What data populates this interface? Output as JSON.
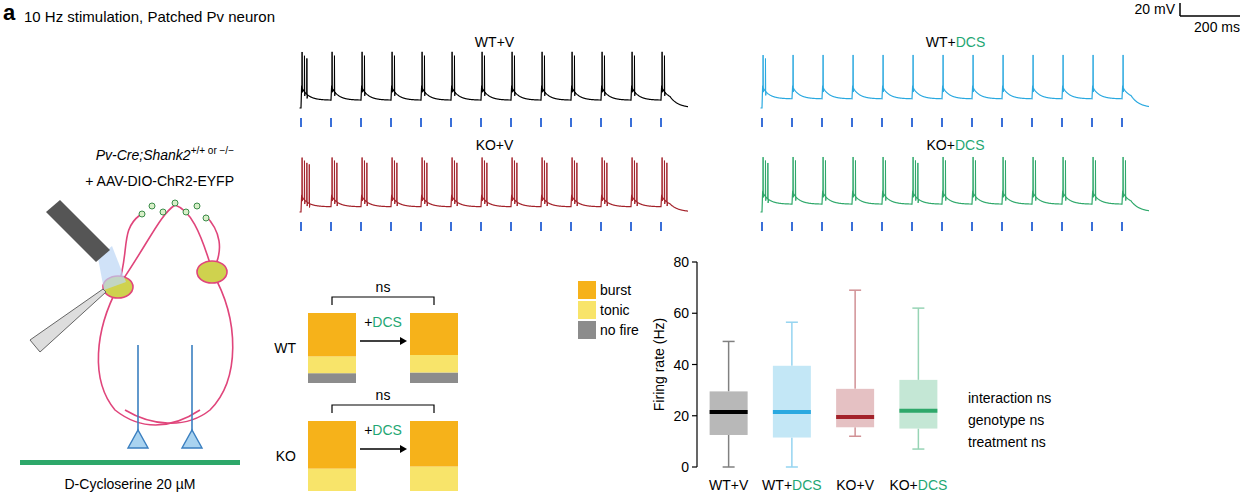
{
  "panel": "a",
  "title": "10 Hz stimulation, Patched Pv neuron",
  "highlight": {
    "text": "DCS",
    "color": "#1fa774"
  },
  "schematic": {
    "genotype": "Pv-Cre;Shank2",
    "genotype_sup": "+/+ or −/−",
    "virus": "+ AAV-DIO-ChR2-EYFP",
    "drug": "D-Cycloserine 20 µM"
  },
  "traces": {
    "stim_hz": 10,
    "pulses": 13,
    "stim_color": "#3a6fd8",
    "scale_bar": {
      "mV": 20,
      "ms": 200,
      "mV_label": "20 mV",
      "ms_label": "200 ms"
    },
    "items": [
      {
        "label": "WT+V",
        "color": "#000000",
        "plateau_mV": 12,
        "epsp_mV": 22,
        "spike_mV": 55,
        "spikes_per_pulse": [
          3,
          2,
          2,
          2,
          2,
          2,
          2,
          2,
          2,
          2,
          2,
          2,
          2
        ]
      },
      {
        "label": "KO+V",
        "color": "#a3222a",
        "plateau_mV": 8,
        "epsp_mV": 18,
        "spike_mV": 60,
        "spikes_per_pulse": [
          4,
          3,
          3,
          3,
          3,
          3,
          3,
          3,
          3,
          3,
          3,
          3,
          3
        ]
      },
      {
        "label": "WT+DCS",
        "color": "#2aa9e0",
        "plateau_mV": 14,
        "epsp_mV": 20,
        "spike_mV": 50,
        "spikes_per_pulse": [
          2,
          1,
          1,
          1,
          1,
          1,
          1,
          1,
          1,
          1,
          1,
          1,
          1
        ]
      },
      {
        "label": "KO+DCS",
        "color": "#2ea86a",
        "plateau_mV": 12,
        "epsp_mV": 20,
        "spike_mV": 55,
        "spikes_per_pulse": [
          3,
          2,
          2,
          2,
          2,
          3,
          2,
          2,
          2,
          2,
          2,
          2,
          2
        ]
      }
    ]
  },
  "chart_data": [
    {
      "type": "bar",
      "stacked": true,
      "categories": [
        null,
        "+DCS",
        null,
        "+DCS"
      ],
      "row_labels": [
        "WT",
        "KO"
      ],
      "annotations": [
        "ns",
        "ns"
      ],
      "series": [
        {
          "name": "burst",
          "color": "#f6b21a",
          "values": [
            62,
            60,
            68,
            65
          ]
        },
        {
          "name": "tonic",
          "color": "#f8e46a",
          "values": [
            24,
            25,
            32,
            35
          ]
        },
        {
          "name": "no fire",
          "color": "#8c8c8c",
          "values": [
            14,
            15,
            0,
            0
          ]
        }
      ],
      "legend": "right",
      "ylim": [
        0,
        100
      ],
      "tick_labels": false
    },
    {
      "type": "box",
      "categories": [
        "WT+V",
        "WT+DCS",
        "KO+V",
        "KO+DCS"
      ],
      "colors": [
        "#000000",
        "#2aa9e0",
        "#a3222a",
        "#2ea86a"
      ],
      "min": [
        0,
        0,
        12,
        7
      ],
      "q1": [
        12.5,
        11.5,
        15.5,
        15
      ],
      "median": [
        21.5,
        21.5,
        19.5,
        22
      ],
      "q3": [
        29.5,
        39.5,
        30.5,
        34
      ],
      "max": [
        49,
        56.5,
        69,
        62
      ],
      "ylabel": "Firing rate (Hz)",
      "ylim": [
        0,
        80
      ],
      "yticks": [
        0,
        20,
        40,
        60,
        80
      ],
      "annotations": [
        "interaction ns",
        "genotype ns",
        "treatment ns"
      ]
    }
  ]
}
